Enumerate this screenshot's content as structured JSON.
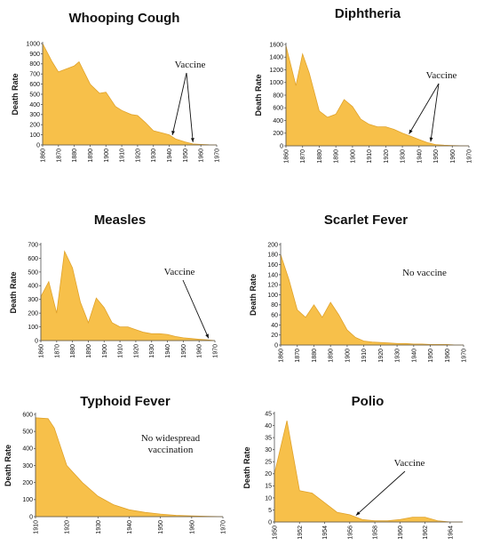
{
  "chart_data": [
    {
      "type": "area",
      "title": "Whooping Cough",
      "ylabel": "Death Rate",
      "xlabel": "",
      "xlim": [
        1860,
        1970
      ],
      "ylim": [
        0,
        1000
      ],
      "xticks": [
        1860,
        1870,
        1880,
        1890,
        1900,
        1910,
        1920,
        1930,
        1940,
        1950,
        1960,
        1970
      ],
      "yticks": [
        0,
        100,
        200,
        300,
        400,
        500,
        600,
        700,
        800,
        900,
        1000
      ],
      "x": [
        1860,
        1866,
        1870,
        1880,
        1883,
        1890,
        1896,
        1900,
        1906,
        1910,
        1916,
        1920,
        1925,
        1930,
        1935,
        1940,
        1944,
        1950,
        1955,
        1960,
        1965,
        1970
      ],
      "y": [
        1000,
        820,
        720,
        780,
        820,
        600,
        510,
        520,
        380,
        340,
        300,
        290,
        220,
        140,
        120,
        100,
        60,
        30,
        10,
        5,
        2,
        0
      ],
      "annotation": "Vaccine",
      "annotation_arrows_x": [
        1942,
        1955
      ]
    },
    {
      "type": "area",
      "title": "Diphtheria",
      "ylabel": "Death Rate",
      "xlabel": "",
      "xlim": [
        1860,
        1970
      ],
      "ylim": [
        0,
        1600
      ],
      "xticks": [
        1860,
        1870,
        1880,
        1890,
        1900,
        1910,
        1920,
        1930,
        1940,
        1950,
        1960,
        1970
      ],
      "yticks": [
        0,
        200,
        400,
        600,
        800,
        1000,
        1200,
        1400,
        1600
      ],
      "x": [
        1860,
        1866,
        1870,
        1874,
        1880,
        1885,
        1890,
        1895,
        1900,
        1905,
        1910,
        1915,
        1920,
        1925,
        1930,
        1935,
        1940,
        1945,
        1950,
        1955,
        1960,
        1965,
        1970
      ],
      "y": [
        1580,
        950,
        1450,
        1150,
        550,
        450,
        500,
        730,
        620,
        420,
        340,
        300,
        300,
        260,
        200,
        150,
        100,
        50,
        20,
        10,
        5,
        2,
        0
      ],
      "annotation": "Vaccine",
      "annotation_arrows_x": [
        1934,
        1947
      ]
    },
    {
      "type": "area",
      "title": "Measles",
      "ylabel": "Death Rate",
      "xlabel": "",
      "xlim": [
        1860,
        1970
      ],
      "ylim": [
        0,
        700
      ],
      "xticks": [
        1860,
        1870,
        1880,
        1890,
        1900,
        1910,
        1920,
        1930,
        1940,
        1950,
        1960,
        1970
      ],
      "yticks": [
        0,
        100,
        200,
        300,
        400,
        500,
        600,
        700
      ],
      "x": [
        1860,
        1865,
        1870,
        1875,
        1880,
        1885,
        1890,
        1895,
        1900,
        1905,
        1910,
        1915,
        1920,
        1925,
        1930,
        1935,
        1940,
        1945,
        1950,
        1955,
        1960,
        1965,
        1970
      ],
      "y": [
        320,
        430,
        200,
        650,
        530,
        280,
        130,
        310,
        240,
        130,
        100,
        100,
        80,
        60,
        50,
        50,
        45,
        30,
        20,
        15,
        10,
        5,
        0
      ],
      "annotation": "Vaccine",
      "annotation_arrows_x": [
        1966
      ]
    },
    {
      "type": "area",
      "title": "Scarlet Fever",
      "ylabel": "Death Rate",
      "xlabel": "",
      "xlim": [
        1860,
        1970
      ],
      "ylim": [
        0,
        200
      ],
      "xticks": [
        1860,
        1870,
        1880,
        1890,
        1900,
        1910,
        1920,
        1930,
        1940,
        1950,
        1960,
        1970
      ],
      "yticks": [
        0,
        20,
        40,
        60,
        80,
        100,
        120,
        140,
        160,
        180,
        200
      ],
      "x": [
        1860,
        1865,
        1870,
        1875,
        1880,
        1885,
        1890,
        1895,
        1900,
        1905,
        1910,
        1915,
        1920,
        1925,
        1930,
        1935,
        1940,
        1945,
        1950,
        1955,
        1960,
        1965,
        1970
      ],
      "y": [
        180,
        130,
        70,
        55,
        80,
        55,
        85,
        60,
        30,
        15,
        8,
        6,
        5,
        4,
        3,
        3,
        2,
        2,
        1,
        1,
        1,
        0,
        0
      ],
      "annotation": "No vaccine",
      "annotation_arrows_x": []
    },
    {
      "type": "area",
      "title": "Typhoid Fever",
      "ylabel": "Death Rate",
      "xlabel": "",
      "xlim": [
        1910,
        1970
      ],
      "ylim": [
        0,
        600
      ],
      "xticks": [
        1910,
        1920,
        1930,
        1940,
        1950,
        1960,
        1970
      ],
      "yticks": [
        0,
        100,
        200,
        300,
        400,
        500,
        600
      ],
      "x": [
        1910,
        1914,
        1916,
        1920,
        1925,
        1930,
        1935,
        1940,
        1945,
        1950,
        1955,
        1960,
        1965,
        1970
      ],
      "y": [
        580,
        575,
        520,
        300,
        200,
        120,
        70,
        40,
        25,
        15,
        8,
        4,
        2,
        0
      ],
      "annotation": "No widespread\nvaccination",
      "annotation_arrows_x": []
    },
    {
      "type": "area",
      "title": "Polio",
      "ylabel": "Death Rate",
      "xlabel": "",
      "xlim": [
        1950,
        1965
      ],
      "ylim": [
        0,
        45
      ],
      "xticks": [
        1950,
        1952,
        1954,
        1956,
        1958,
        1960,
        1962,
        1964
      ],
      "yticks": [
        0,
        5,
        10,
        15,
        20,
        25,
        30,
        35,
        40,
        45
      ],
      "x": [
        1950,
        1951,
        1952,
        1953,
        1954,
        1955,
        1956,
        1957,
        1958,
        1959,
        1960,
        1961,
        1962,
        1963,
        1964,
        1965
      ],
      "y": [
        20,
        42,
        13,
        12,
        8,
        4,
        3,
        1,
        0.5,
        0.5,
        1,
        2,
        2,
        0.5,
        0,
        0
      ],
      "annotation": "Vaccine",
      "annotation_arrows_x": [
        1956.5
      ]
    }
  ]
}
